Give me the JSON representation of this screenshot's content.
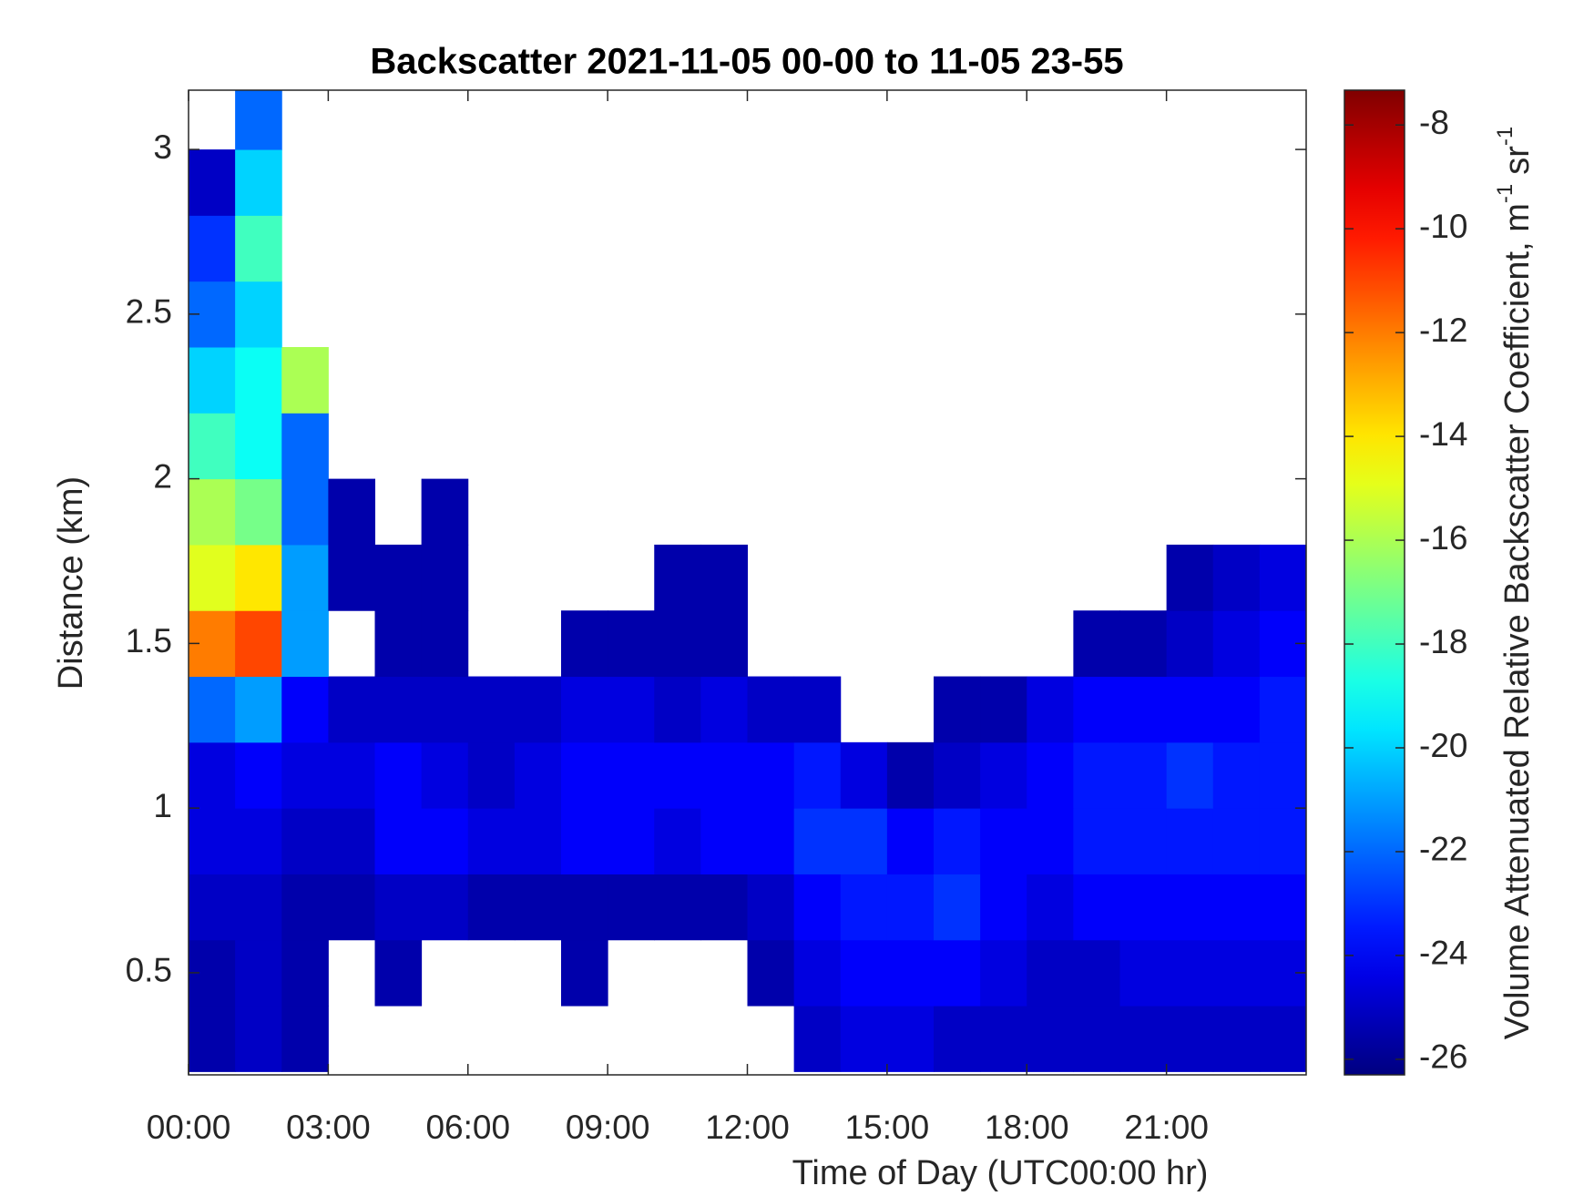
{
  "chart_data": {
    "type": "heatmap",
    "title": "Backscatter 2021-11-05 00-00 to 11-05 23-55",
    "x_label": "Time of Day (UTC00:00 hr)",
    "y_label": "Distance (km)",
    "colorbar_label": [
      "Volume Attenuated Relative Backscatter Coefficient, m",
      "-1",
      "sr",
      "-1"
    ],
    "colormap": "jet",
    "xlim": [
      0,
      24
    ],
    "xticks": [
      {
        "value": 0,
        "label": "00:00"
      },
      {
        "value": 3,
        "label": "03:00"
      },
      {
        "value": 6,
        "label": "06:00"
      },
      {
        "value": 9,
        "label": "09:00"
      },
      {
        "value": 12,
        "label": "12:00"
      },
      {
        "value": 15,
        "label": "15:00"
      },
      {
        "value": 18,
        "label": "18:00"
      },
      {
        "value": 21,
        "label": "21:00"
      }
    ],
    "ylim": [
      0.19,
      3.18
    ],
    "yticks": [
      0.5,
      1,
      1.5,
      2,
      2.5,
      3
    ],
    "clim": [
      -26.3,
      -7.33
    ],
    "cticks": [
      -26,
      -24,
      -22,
      -20,
      -18,
      -16,
      -14,
      -12,
      -10,
      -8
    ],
    "x_bins": [
      0,
      1,
      2,
      3,
      4,
      5,
      6,
      7,
      8,
      9,
      10,
      11,
      12,
      13,
      14,
      15,
      16,
      17,
      18,
      19,
      20,
      21,
      22,
      23,
      24
    ],
    "y_bins": [
      0.2,
      0.4,
      0.6,
      0.8,
      1.0,
      1.2,
      1.4,
      1.6,
      1.8,
      2.0,
      2.2,
      2.4,
      2.6,
      2.8,
      3.0,
      3.2
    ],
    "values": [
      [
        -25.5,
        -25,
        -25.5,
        null,
        null,
        null,
        null,
        null,
        null,
        null,
        null,
        null,
        null,
        -25,
        -24.5,
        -24.5,
        -25,
        -25,
        -25,
        -25,
        -25,
        -25,
        -25,
        -25
      ],
      [
        -25.5,
        -25,
        -25.5,
        null,
        -25.5,
        null,
        null,
        null,
        -25.5,
        null,
        null,
        null,
        -25.5,
        -24.5,
        -24,
        -24,
        -24,
        -24.5,
        -25,
        -25,
        -24.5,
        -24.5,
        -24.5,
        -24.5
      ],
      [
        -25,
        -25,
        -25.5,
        -25.5,
        -25,
        -25,
        -25.5,
        -25.5,
        -25.5,
        -25.5,
        -25.5,
        -25.5,
        -25,
        -24,
        -23.5,
        -23.5,
        -23,
        -24,
        -24.5,
        -24,
        -24,
        -24,
        -24,
        -24
      ],
      [
        -24.5,
        -24.5,
        -25,
        -25,
        -24,
        -24,
        -24.5,
        -24.5,
        -24,
        -24,
        -24.5,
        -24,
        -24,
        -23,
        -23,
        -24,
        -23.5,
        -24,
        -24,
        -23.5,
        -23.5,
        -23.5,
        -23.5,
        -23.5
      ],
      [
        -24.5,
        -24,
        -24.5,
        -24.5,
        -24,
        -24.5,
        -25,
        -24.5,
        -24,
        -24,
        -24,
        -24,
        -24,
        -23.5,
        -24.5,
        -25.5,
        -25,
        -24.5,
        -24,
        -23.5,
        -23.5,
        -23,
        -23.5,
        -23.5
      ],
      [
        -22,
        -21,
        -24,
        -25,
        -25,
        -25,
        -25,
        -25,
        -24.5,
        -24.5,
        -25,
        -24.5,
        -25,
        -25,
        null,
        null,
        -25.5,
        -25.5,
        -24.5,
        -24,
        -24,
        -24,
        -24,
        -23.5
      ],
      [
        -12,
        -11,
        -21,
        null,
        -25.5,
        -25.5,
        null,
        null,
        -25.5,
        -25.5,
        -25.5,
        -25.5,
        null,
        null,
        null,
        null,
        null,
        null,
        null,
        -25.5,
        -25.5,
        -25,
        -24.5,
        -24
      ],
      [
        -15,
        -14,
        -21,
        -25.5,
        -25.5,
        -25.5,
        null,
        null,
        null,
        null,
        -25.5,
        -25.5,
        null,
        null,
        null,
        null,
        null,
        null,
        null,
        null,
        null,
        -25.5,
        -25,
        -24.5
      ],
      [
        -16,
        -17,
        -22,
        -25.5,
        null,
        -25.5,
        null,
        null,
        null,
        null,
        null,
        null,
        null,
        null,
        null,
        null,
        null,
        null,
        null,
        null,
        null,
        null,
        null,
        null
      ],
      [
        -18,
        -19,
        -22,
        null,
        null,
        null,
        null,
        null,
        null,
        null,
        null,
        null,
        null,
        null,
        null,
        null,
        null,
        null,
        null,
        null,
        null,
        null,
        null,
        null
      ],
      [
        -20,
        -19,
        -16,
        null,
        null,
        null,
        null,
        null,
        null,
        null,
        null,
        null,
        null,
        null,
        null,
        null,
        null,
        null,
        null,
        null,
        null,
        null,
        null,
        null
      ],
      [
        -22,
        -20,
        null,
        null,
        null,
        null,
        null,
        null,
        null,
        null,
        null,
        null,
        null,
        null,
        null,
        null,
        null,
        null,
        null,
        null,
        null,
        null,
        null,
        null
      ],
      [
        -23,
        -18,
        null,
        null,
        null,
        null,
        null,
        null,
        null,
        null,
        null,
        null,
        null,
        null,
        null,
        null,
        null,
        null,
        null,
        null,
        null,
        null,
        null,
        null
      ],
      [
        -25,
        -20,
        null,
        null,
        null,
        null,
        null,
        null,
        null,
        null,
        null,
        null,
        null,
        null,
        null,
        null,
        null,
        null,
        null,
        null,
        null,
        null,
        null,
        null
      ],
      [
        null,
        -22,
        null,
        null,
        null,
        null,
        null,
        null,
        null,
        null,
        null,
        null,
        null,
        null,
        null,
        null,
        null,
        null,
        null,
        null,
        null,
        null,
        null,
        null
      ]
    ]
  }
}
